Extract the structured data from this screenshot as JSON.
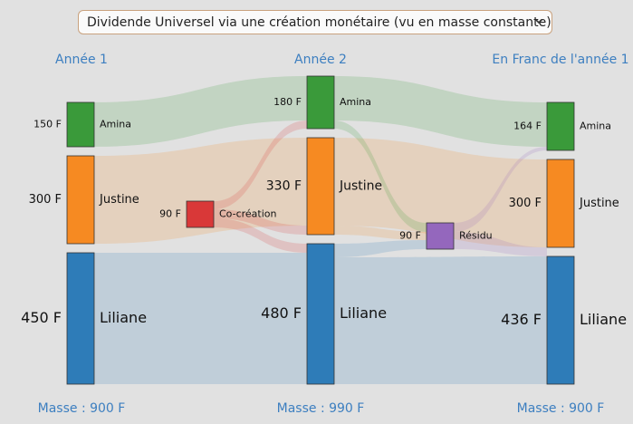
{
  "selector": {
    "label": "Dividende Universel via une création monétaire (vu en masse constante)"
  },
  "columns": [
    {
      "header": "Année 1",
      "mass": "Masse : 900 F"
    },
    {
      "header": "Année 2",
      "mass": "Masse : 990 F"
    },
    {
      "header": "En Franc de l'année 1",
      "mass": "Masse : 900 F"
    }
  ],
  "nodes": [
    {
      "id": "a1",
      "name": "Amina",
      "value": "150 F",
      "color": "#3a9a3a"
    },
    {
      "id": "j1",
      "name": "Justine",
      "value": "300 F",
      "color": "#f68a22"
    },
    {
      "id": "l1",
      "name": "Liliane",
      "value": "450 F",
      "color": "#2e7cb8"
    },
    {
      "id": "cc",
      "name": "Co-création",
      "value": "90 F",
      "color": "#d93838"
    },
    {
      "id": "a2",
      "name": "Amina",
      "value": "180 F",
      "color": "#3a9a3a"
    },
    {
      "id": "j2",
      "name": "Justine",
      "value": "330 F",
      "color": "#f68a22"
    },
    {
      "id": "l2",
      "name": "Liliane",
      "value": "480 F",
      "color": "#2e7cb8"
    },
    {
      "id": "rs",
      "name": "Résidu",
      "value": "90 F",
      "color": "#9467bd"
    },
    {
      "id": "a3",
      "name": "Amina",
      "value": "164 F",
      "color": "#3a9a3a"
    },
    {
      "id": "j3",
      "name": "Justine",
      "value": "300 F",
      "color": "#f68a22"
    },
    {
      "id": "l3",
      "name": "Liliane",
      "value": "436 F",
      "color": "#2e7cb8"
    }
  ]
}
